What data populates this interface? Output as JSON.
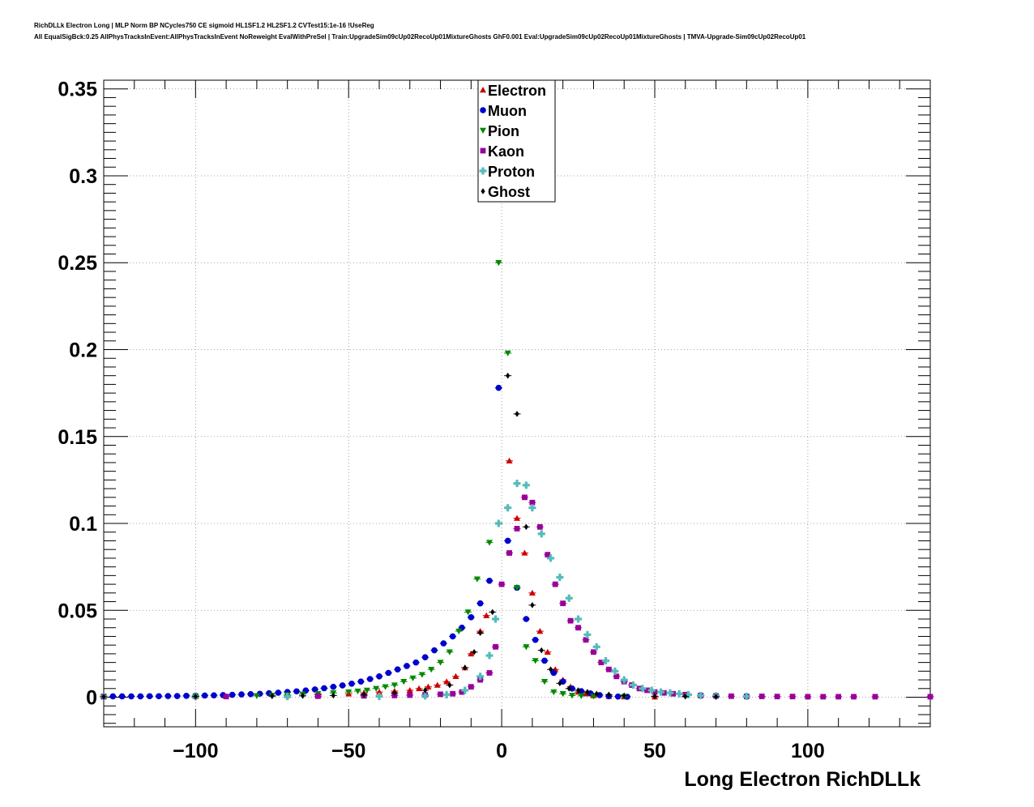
{
  "header": {
    "line1": "RichDLLk Electron Long | MLP Norm BP NCycles750 CE sigmoid HL1SF1.2 HL2SF1.2 CVTest15:1e-16 !UseReg",
    "line2": "All EqualSigBck:0.25 AllPhysTracksInEvent:AllPhysTracksInEvent NoReweight EvalWithPreSel | Train:UpgradeSim09cUp02RecoUp01MixtureGhosts GhF0.001 Eval:UpgradeSim09cUp02RecoUp01MixtureGhosts | TMVA-Upgrade-Sim09cUp02RecoUp01"
  },
  "chart_data": {
    "type": "scatter",
    "xlabel": "Long Electron RichDLLk",
    "ylabel": "",
    "xlim": [
      -130,
      140
    ],
    "ylim": [
      -0.017,
      0.355
    ],
    "x_ticks": [
      -100,
      -50,
      0,
      50,
      100
    ],
    "x_tick_labels": [
      "−100",
      "−50",
      "0",
      "50",
      "100"
    ],
    "y_ticks": [
      0,
      0.05,
      0.1,
      0.15,
      0.2,
      0.25,
      0.3,
      0.35
    ],
    "y_tick_labels": [
      "0",
      "0.05",
      "0.1",
      "0.15",
      "0.2",
      "0.25",
      "0.3",
      "0.35"
    ],
    "grid": true,
    "legend_position": "top-center",
    "series": [
      {
        "name": "Electron",
        "color": "#cc0000",
        "marker": "triangle-up",
        "points": [
          [
            -130,
            0.0005
          ],
          [
            -100,
            0.0006
          ],
          [
            -70,
            0.001
          ],
          [
            -60,
            0.0015
          ],
          [
            -50,
            0.002
          ],
          [
            -45,
            0.0025
          ],
          [
            -40,
            0.003
          ],
          [
            -35,
            0.0035
          ],
          [
            -30,
            0.004
          ],
          [
            -27,
            0.005
          ],
          [
            -24,
            0.006
          ],
          [
            -21,
            0.007
          ],
          [
            -18,
            0.009
          ],
          [
            -15,
            0.012
          ],
          [
            -12,
            0.017
          ],
          [
            -10,
            0.025
          ],
          [
            -7,
            0.038
          ],
          [
            -5,
            0.047
          ],
          [
            2.5,
            0.136
          ],
          [
            5,
            0.103
          ],
          [
            7.5,
            0.083
          ],
          [
            10,
            0.06
          ],
          [
            12.5,
            0.038
          ],
          [
            15,
            0.026
          ],
          [
            17.5,
            0.016
          ],
          [
            20,
            0.01
          ],
          [
            22.5,
            0.006
          ],
          [
            25,
            0.003
          ],
          [
            27.5,
            0.002
          ],
          [
            30,
            0.001
          ],
          [
            35,
            0.0005
          ],
          [
            40,
            0.0003
          ],
          [
            50,
            0.0002
          ]
        ]
      },
      {
        "name": "Muon",
        "color": "#0000cc",
        "marker": "circle",
        "points": [
          [
            -130,
            0.0005
          ],
          [
            -127,
            0.0005
          ],
          [
            -124,
            0.0005
          ],
          [
            -121,
            0.0005
          ],
          [
            -118,
            0.0005
          ],
          [
            -115,
            0.0006
          ],
          [
            -112,
            0.0006
          ],
          [
            -109,
            0.0007
          ],
          [
            -106,
            0.0007
          ],
          [
            -103,
            0.0008
          ],
          [
            -100,
            0.0009
          ],
          [
            -97,
            0.001
          ],
          [
            -94,
            0.0011
          ],
          [
            -91,
            0.0012
          ],
          [
            -88,
            0.0014
          ],
          [
            -85,
            0.0016
          ],
          [
            -82,
            0.0018
          ],
          [
            -79,
            0.002
          ],
          [
            -76,
            0.0023
          ],
          [
            -73,
            0.0026
          ],
          [
            -70,
            0.003
          ],
          [
            -67,
            0.0034
          ],
          [
            -64,
            0.0039
          ],
          [
            -61,
            0.0045
          ],
          [
            -58,
            0.0052
          ],
          [
            -55,
            0.006
          ],
          [
            -52,
            0.0068
          ],
          [
            -49,
            0.0078
          ],
          [
            -46,
            0.009
          ],
          [
            -43,
            0.0105
          ],
          [
            -40,
            0.012
          ],
          [
            -37,
            0.014
          ],
          [
            -34,
            0.016
          ],
          [
            -31,
            0.018
          ],
          [
            -28,
            0.02
          ],
          [
            -25,
            0.023
          ],
          [
            -22,
            0.027
          ],
          [
            -19,
            0.031
          ],
          [
            -16,
            0.035
          ],
          [
            -13,
            0.04
          ],
          [
            -10,
            0.046
          ],
          [
            -7,
            0.054
          ],
          [
            -4,
            0.067
          ],
          [
            -1,
            0.178
          ],
          [
            2,
            0.09
          ],
          [
            5,
            0.063
          ],
          [
            8,
            0.045
          ],
          [
            11,
            0.033
          ],
          [
            14,
            0.021
          ],
          [
            17,
            0.014
          ],
          [
            20,
            0.009
          ],
          [
            23,
            0.005
          ],
          [
            26,
            0.0035
          ],
          [
            29,
            0.0022
          ],
          [
            32,
            0.0012
          ],
          [
            35,
            0.0006
          ],
          [
            38,
            0.0004
          ],
          [
            41,
            0.0003
          ]
        ]
      },
      {
        "name": "Pion",
        "color": "#008800",
        "marker": "triangle-down",
        "points": [
          [
            -130,
            0.0005
          ],
          [
            -100,
            0.0005
          ],
          [
            -80,
            0.0008
          ],
          [
            -75,
            0.001
          ],
          [
            -70,
            0.0013
          ],
          [
            -65,
            0.0017
          ],
          [
            -60,
            0.002
          ],
          [
            -55,
            0.0025
          ],
          [
            -50,
            0.003
          ],
          [
            -47,
            0.0035
          ],
          [
            -44,
            0.004
          ],
          [
            -41,
            0.005
          ],
          [
            -38,
            0.006
          ],
          [
            -35,
            0.007
          ],
          [
            -32,
            0.009
          ],
          [
            -29,
            0.011
          ],
          [
            -26,
            0.013
          ],
          [
            -23,
            0.016
          ],
          [
            -20,
            0.02
          ],
          [
            -17,
            0.026
          ],
          [
            -14,
            0.038
          ],
          [
            -11,
            0.049
          ],
          [
            -8,
            0.068
          ],
          [
            -4,
            0.089
          ],
          [
            -1,
            0.25
          ],
          [
            2,
            0.198
          ],
          [
            5,
            0.063
          ],
          [
            8,
            0.029
          ],
          [
            11,
            0.021
          ],
          [
            14,
            0.009
          ],
          [
            17,
            0.003
          ],
          [
            20,
            0.002
          ],
          [
            23,
            0.001
          ],
          [
            26,
            0.0008
          ],
          [
            30,
            0.0006
          ],
          [
            40,
            0.0004
          ]
        ]
      },
      {
        "name": "Kaon",
        "color": "#990099",
        "marker": "square",
        "points": [
          [
            -130,
            0.0003
          ],
          [
            -90,
            0.0004
          ],
          [
            -60,
            0.0006
          ],
          [
            -45,
            0.0008
          ],
          [
            -35,
            0.001
          ],
          [
            -30,
            0.0012
          ],
          [
            -25,
            0.0014
          ],
          [
            -20,
            0.0017
          ],
          [
            -16,
            0.002
          ],
          [
            -13,
            0.003
          ],
          [
            -10,
            0.006
          ],
          [
            -7,
            0.01
          ],
          [
            -4,
            0.014
          ],
          [
            -2,
            0.029
          ],
          [
            0,
            0.065
          ],
          [
            2.5,
            0.083
          ],
          [
            5,
            0.097
          ],
          [
            7.5,
            0.115
          ],
          [
            10,
            0.112
          ],
          [
            12.5,
            0.098
          ],
          [
            15,
            0.082
          ],
          [
            17.5,
            0.065
          ],
          [
            20,
            0.054
          ],
          [
            22.5,
            0.044
          ],
          [
            25,
            0.04
          ],
          [
            27.5,
            0.033
          ],
          [
            30,
            0.026
          ],
          [
            32.5,
            0.02
          ],
          [
            35,
            0.016
          ],
          [
            37.5,
            0.012
          ],
          [
            40,
            0.009
          ],
          [
            42.5,
            0.007
          ],
          [
            45,
            0.005
          ],
          [
            47.5,
            0.004
          ],
          [
            50,
            0.003
          ],
          [
            53,
            0.0025
          ],
          [
            56,
            0.002
          ],
          [
            60,
            0.0015
          ],
          [
            65,
            0.001
          ],
          [
            70,
            0.0008
          ],
          [
            75,
            0.0006
          ],
          [
            80,
            0.0005
          ],
          [
            85,
            0.0005
          ],
          [
            90,
            0.0004
          ],
          [
            95,
            0.0004
          ],
          [
            100,
            0.0003
          ],
          [
            105,
            0.0003
          ],
          [
            110,
            0.0003
          ],
          [
            115,
            0.0003
          ],
          [
            122,
            0.0003
          ],
          [
            140,
            0.0003
          ]
        ]
      },
      {
        "name": "Proton",
        "color": "#55bbbb",
        "marker": "cross",
        "points": [
          [
            -130,
            0.0003
          ],
          [
            -100,
            0.0003
          ],
          [
            -70,
            0.0004
          ],
          [
            -40,
            0.0005
          ],
          [
            -25,
            0.0008
          ],
          [
            -18,
            0.0015
          ],
          [
            -12,
            0.004
          ],
          [
            -7,
            0.012
          ],
          [
            -4,
            0.024
          ],
          [
            -2,
            0.045
          ],
          [
            -1,
            0.1
          ],
          [
            2,
            0.109
          ],
          [
            5,
            0.123
          ],
          [
            8,
            0.122
          ],
          [
            10,
            0.109
          ],
          [
            13,
            0.094
          ],
          [
            16,
            0.08
          ],
          [
            19,
            0.069
          ],
          [
            22,
            0.057
          ],
          [
            25,
            0.045
          ],
          [
            28,
            0.036
          ],
          [
            31,
            0.029
          ],
          [
            34,
            0.021
          ],
          [
            37,
            0.015
          ],
          [
            40,
            0.01
          ],
          [
            43,
            0.007
          ],
          [
            46,
            0.005
          ],
          [
            49,
            0.004
          ],
          [
            52,
            0.003
          ],
          [
            55,
            0.0025
          ],
          [
            58,
            0.002
          ],
          [
            61,
            0.0015
          ],
          [
            65,
            0.001
          ],
          [
            70,
            0.0008
          ],
          [
            80,
            0.0005
          ]
        ]
      },
      {
        "name": "Ghost",
        "color": "#000000",
        "marker": "diamond",
        "points": [
          [
            -130,
            0.0003
          ],
          [
            -100,
            0.0004
          ],
          [
            -75,
            0.0006
          ],
          [
            -65,
            0.0008
          ],
          [
            -55,
            0.001
          ],
          [
            -45,
            0.0015
          ],
          [
            -35,
            0.0025
          ],
          [
            -25,
            0.004
          ],
          [
            -17,
            0.007
          ],
          [
            -12,
            0.017
          ],
          [
            -9,
            0.026
          ],
          [
            -7,
            0.037
          ],
          [
            -3,
            0.049
          ],
          [
            2,
            0.185
          ],
          [
            5,
            0.163
          ],
          [
            8,
            0.098
          ],
          [
            10,
            0.053
          ],
          [
            13,
            0.027
          ],
          [
            16,
            0.016
          ],
          [
            19,
            0.008
          ],
          [
            22,
            0.005
          ],
          [
            25,
            0.004
          ],
          [
            28,
            0.003
          ],
          [
            31,
            0.002
          ],
          [
            35,
            0.0015
          ],
          [
            40,
            0.001
          ],
          [
            50,
            0.0006
          ],
          [
            60,
            0.0004
          ],
          [
            70,
            0.0003
          ]
        ]
      }
    ]
  }
}
